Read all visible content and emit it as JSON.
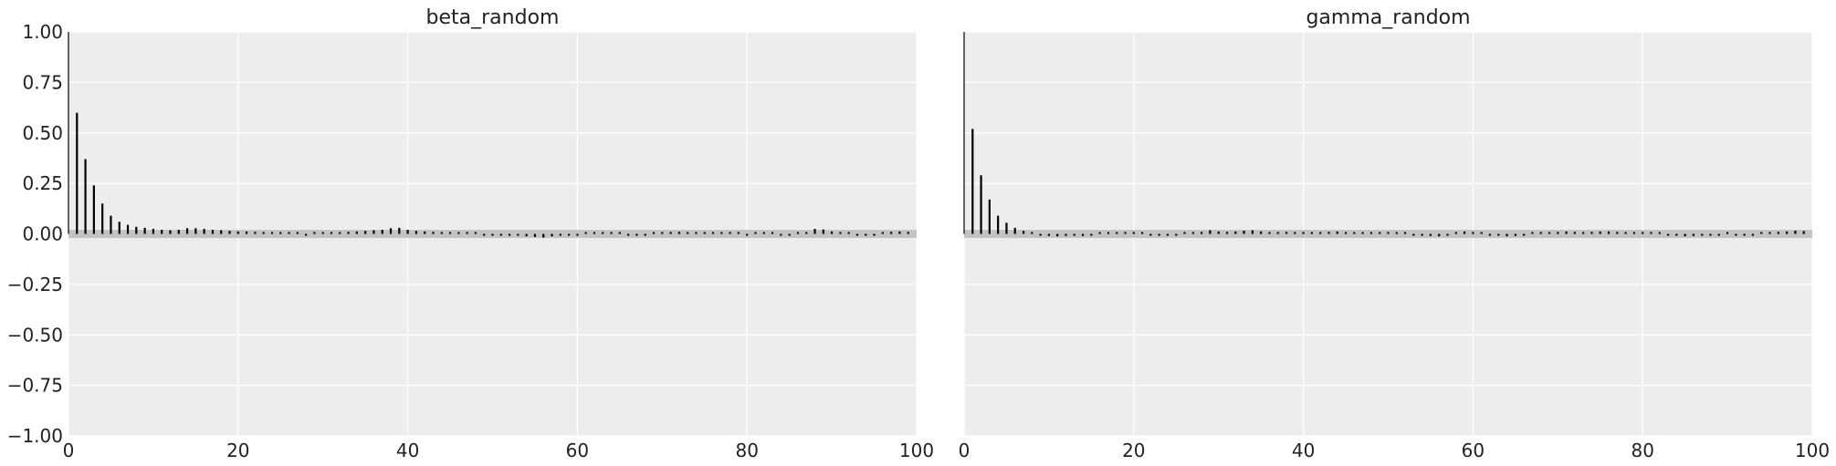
{
  "chart_data": [
    {
      "type": "bar",
      "subtype": "autocorrelation",
      "title": "beta_random",
      "xlabel": "",
      "ylabel": "",
      "xlim": [
        0,
        100
      ],
      "ylim": [
        -1.0,
        1.0
      ],
      "xticks": [
        "0",
        "20",
        "40",
        "60",
        "80",
        "100"
      ],
      "yticks": [
        "1.00",
        "0.75",
        "0.50",
        "0.25",
        "0.00",
        "−0.25",
        "−0.50",
        "−0.75",
        "−1.00"
      ],
      "grid": true,
      "confidence_band": [
        -0.02,
        0.02
      ],
      "lags": [
        0,
        1,
        2,
        3,
        4,
        5,
        6,
        7,
        8,
        9,
        10,
        11,
        12,
        13,
        14,
        15,
        16,
        17,
        18,
        19,
        20,
        21,
        22,
        23,
        24,
        25,
        26,
        27,
        28,
        29,
        30,
        31,
        32,
        33,
        34,
        35,
        36,
        37,
        38,
        39,
        40,
        41,
        42,
        43,
        44,
        45,
        46,
        47,
        48,
        49,
        50,
        51,
        52,
        53,
        54,
        55,
        56,
        57,
        58,
        59,
        60,
        61,
        62,
        63,
        64,
        65,
        66,
        67,
        68,
        69,
        70,
        71,
        72,
        73,
        74,
        75,
        76,
        77,
        78,
        79,
        80,
        81,
        82,
        83,
        84,
        85,
        86,
        87,
        88,
        89,
        90,
        91,
        92,
        93,
        94,
        95,
        96,
        97,
        98,
        99
      ],
      "values": [
        1.0,
        0.6,
        0.37,
        0.24,
        0.15,
        0.09,
        0.06,
        0.045,
        0.035,
        0.03,
        0.025,
        0.02,
        0.018,
        0.02,
        0.028,
        0.028,
        0.025,
        0.02,
        0.018,
        0.015,
        0.012,
        0.012,
        0.01,
        0.008,
        0.006,
        0.004,
        0.002,
        0.0,
        -0.002,
        0.0,
        0.002,
        0.005,
        0.008,
        0.01,
        0.012,
        0.015,
        0.018,
        0.02,
        0.028,
        0.03,
        0.02,
        0.015,
        0.012,
        0.01,
        0.008,
        0.006,
        0.004,
        0.002,
        0.0,
        -0.002,
        -0.004,
        -0.005,
        -0.006,
        -0.008,
        -0.012,
        -0.015,
        -0.018,
        -0.012,
        -0.008,
        -0.005,
        -0.002,
        0.002,
        0.005,
        0.006,
        0.004,
        0.002,
        -0.004,
        -0.006,
        -0.004,
        0.002,
        0.008,
        0.01,
        0.01,
        0.008,
        0.006,
        0.006,
        0.006,
        0.008,
        0.004,
        0.002,
        -0.002,
        0.002,
        0.004,
        0.002,
        -0.004,
        -0.006,
        0.002,
        0.008,
        0.025,
        0.022,
        0.012,
        0.004,
        0.0,
        -0.002,
        -0.002,
        -0.004,
        0.006,
        0.01,
        0.012,
        0.01
      ]
    },
    {
      "type": "bar",
      "subtype": "autocorrelation",
      "title": "gamma_random",
      "xlabel": "",
      "ylabel": "",
      "xlim": [
        0,
        100
      ],
      "ylim": [
        -1.0,
        1.0
      ],
      "xticks": [
        "0",
        "20",
        "40",
        "60",
        "80",
        "100"
      ],
      "grid": true,
      "confidence_band": [
        -0.02,
        0.02
      ],
      "lags": [
        0,
        1,
        2,
        3,
        4,
        5,
        6,
        7,
        8,
        9,
        10,
        11,
        12,
        13,
        14,
        15,
        16,
        17,
        18,
        19,
        20,
        21,
        22,
        23,
        24,
        25,
        26,
        27,
        28,
        29,
        30,
        31,
        32,
        33,
        34,
        35,
        36,
        37,
        38,
        39,
        40,
        41,
        42,
        43,
        44,
        45,
        46,
        47,
        48,
        49,
        50,
        51,
        52,
        53,
        54,
        55,
        56,
        57,
        58,
        59,
        60,
        61,
        62,
        63,
        64,
        65,
        66,
        67,
        68,
        69,
        70,
        71,
        72,
        73,
        74,
        75,
        76,
        77,
        78,
        79,
        80,
        81,
        82,
        83,
        84,
        85,
        86,
        87,
        88,
        89,
        90,
        91,
        92,
        93,
        94,
        95,
        96,
        97,
        98,
        99
      ],
      "values": [
        1.0,
        0.52,
        0.29,
        0.17,
        0.09,
        0.055,
        0.03,
        0.015,
        0.0,
        -0.005,
        -0.01,
        -0.012,
        -0.01,
        -0.008,
        -0.01,
        -0.005,
        0.002,
        0.006,
        0.006,
        0.008,
        0.004,
        0.0,
        -0.004,
        -0.005,
        -0.002,
        -0.004,
        0.004,
        0.008,
        0.01,
        0.018,
        0.012,
        0.01,
        0.012,
        0.016,
        0.018,
        0.012,
        0.004,
        0.006,
        0.01,
        0.008,
        0.004,
        0.006,
        0.008,
        0.01,
        0.012,
        0.008,
        0.004,
        0.002,
        0.004,
        0.006,
        0.004,
        0.002,
        0.0,
        -0.002,
        -0.004,
        -0.01,
        -0.012,
        -0.006,
        0.008,
        0.012,
        0.008,
        0.004,
        -0.004,
        -0.008,
        -0.012,
        -0.01,
        -0.004,
        0.002,
        0.004,
        0.006,
        0.01,
        0.012,
        0.01,
        0.008,
        0.01,
        0.012,
        0.012,
        0.01,
        0.008,
        0.006,
        0.004,
        0.002,
        0.0,
        -0.004,
        -0.008,
        -0.012,
        -0.01,
        -0.008,
        -0.004,
        -0.002,
        0.002,
        -0.006,
        -0.008,
        -0.004,
        0.0,
        0.004,
        0.01,
        0.012,
        0.016,
        0.014
      ]
    }
  ],
  "colors": {
    "figure_background": "#ffffff",
    "axes_background": "#ededed",
    "grid": "#ffffff",
    "bar": "#000000",
    "confidence_band": "#c3c3c3",
    "text": "#222222"
  }
}
